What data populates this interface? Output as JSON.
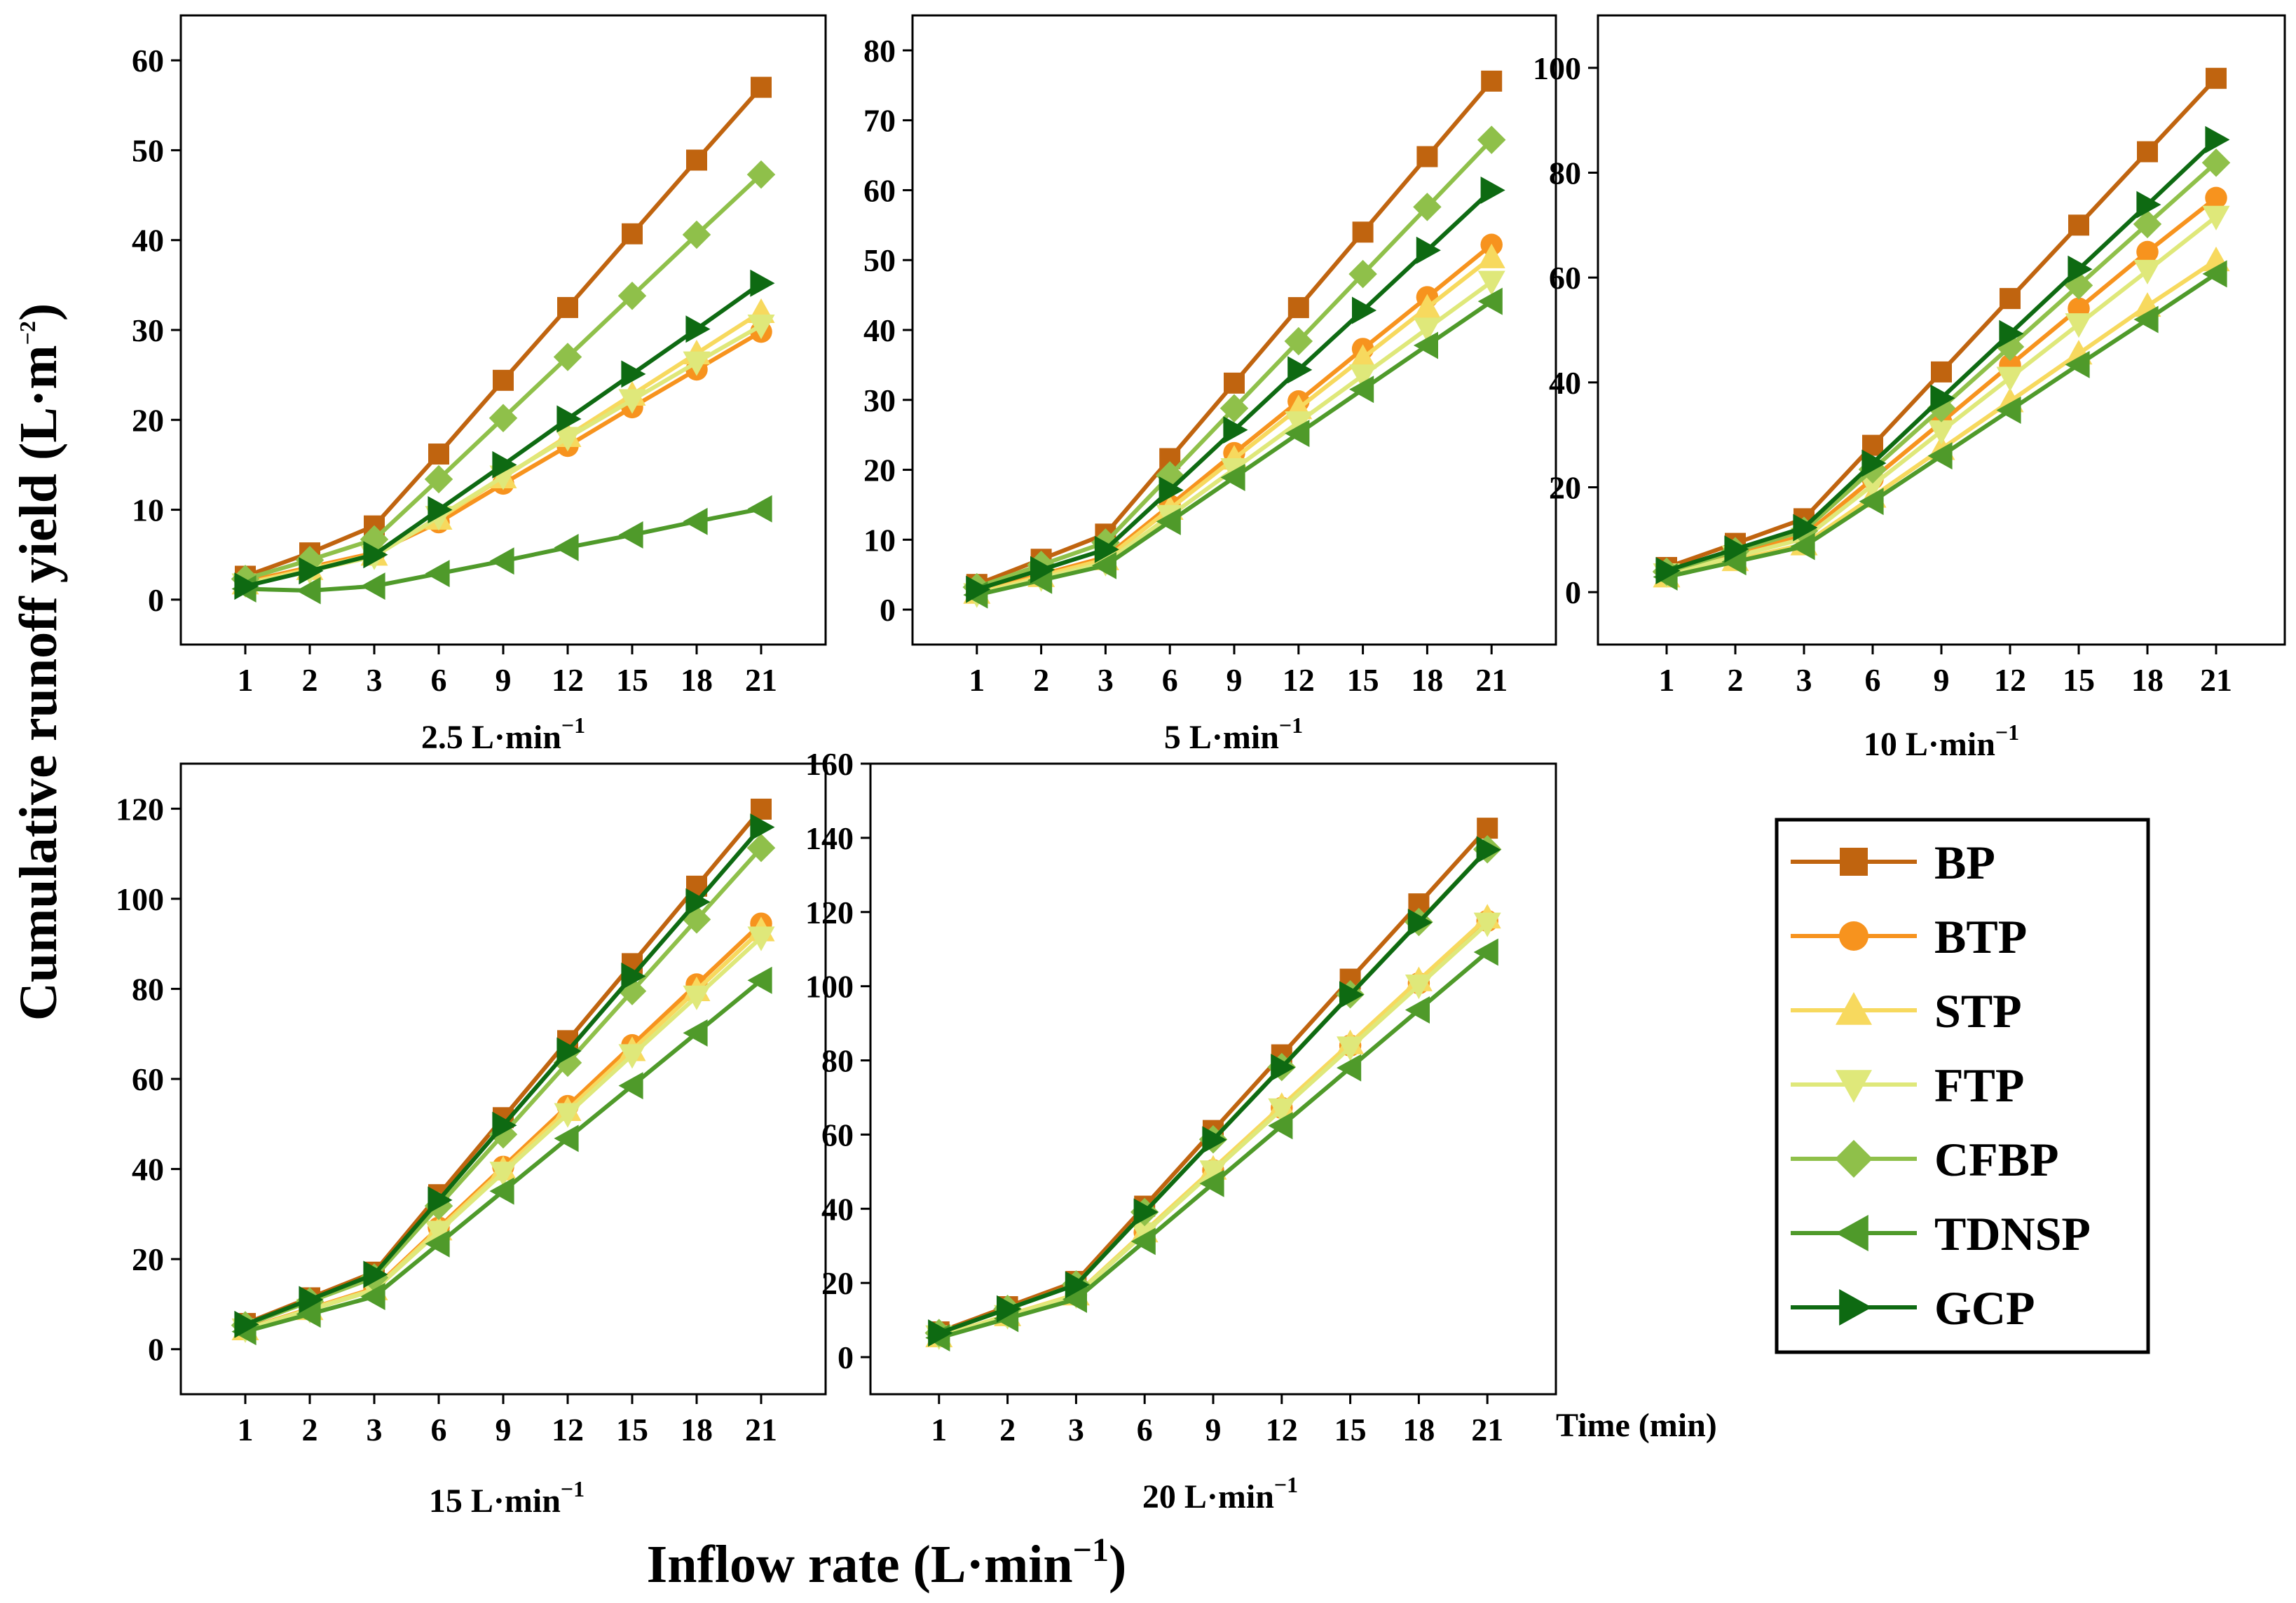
{
  "figure": {
    "ylabel": "Cumulative runoff  yield (L·m",
    "ylabel_sup": "−2",
    "ylabel_close": ")",
    "xlabel": "Inflow rate (L·min",
    "xlabel_sup": "−1",
    "xlabel_close": ")",
    "time_label": "Time (min)"
  },
  "series_styles": [
    {
      "name": "BP",
      "color": "#c0640f",
      "marker": "square"
    },
    {
      "name": "BTP",
      "color": "#f7931e",
      "marker": "circle"
    },
    {
      "name": "STP",
      "color": "#f7d95e",
      "marker": "triangle-up"
    },
    {
      "name": "FTP",
      "color": "#dfe87a",
      "marker": "triangle-down"
    },
    {
      "name": "CFBP",
      "color": "#8fc04a",
      "marker": "diamond"
    },
    {
      "name": "TDNSP",
      "color": "#4f9a2a",
      "marker": "triangle-left"
    },
    {
      "name": "GCP",
      "color": "#0e6a12",
      "marker": "triangle-right"
    }
  ],
  "chart_data": [
    {
      "type": "line",
      "title": "2.5 L·min",
      "title_sup": "−1",
      "categories": [
        "1",
        "2",
        "3",
        "6",
        "9",
        "12",
        "15",
        "18",
        "21"
      ],
      "ylim": [
        -5,
        65
      ],
      "yticks": [
        "0",
        "10",
        "20",
        "30",
        "40",
        "50",
        "60"
      ],
      "series": [
        {
          "name": "BP",
          "values": [
            2.6,
            5.2,
            8.2,
            16.2,
            24.4,
            32.5,
            40.7,
            48.9,
            57.0
          ]
        },
        {
          "name": "BTP",
          "values": [
            2.0,
            3.6,
            5.2,
            8.6,
            12.9,
            17.1,
            21.4,
            25.6,
            29.8
          ]
        },
        {
          "name": "STP",
          "values": [
            1.8,
            3.4,
            5.0,
            9.0,
            13.6,
            18.2,
            22.8,
            27.4,
            32.0
          ]
        },
        {
          "name": "FTP",
          "values": [
            1.7,
            3.2,
            4.8,
            9.2,
            13.7,
            18.0,
            22.2,
            26.4,
            30.5
          ]
        },
        {
          "name": "CFBP",
          "values": [
            2.3,
            4.4,
            6.7,
            13.4,
            20.2,
            27.0,
            33.8,
            40.6,
            47.3
          ]
        },
        {
          "name": "TDNSP",
          "values": [
            1.2,
            1.0,
            1.5,
            2.9,
            4.3,
            5.8,
            7.2,
            8.7,
            10.1
          ]
        },
        {
          "name": "GCP",
          "values": [
            1.5,
            3.2,
            5.0,
            10.0,
            15.0,
            20.1,
            25.1,
            30.1,
            35.2
          ]
        }
      ]
    },
    {
      "type": "line",
      "title": "5 L·min",
      "title_sup": "−1",
      "categories": [
        "1",
        "2",
        "3",
        "6",
        "9",
        "12",
        "15",
        "18",
        "21"
      ],
      "ylim": [
        -5,
        85
      ],
      "yticks": [
        "0",
        "10",
        "20",
        "30",
        "40",
        "50",
        "60",
        "70",
        "80"
      ],
      "series": [
        {
          "name": "BP",
          "values": [
            3.6,
            7.2,
            10.8,
            21.6,
            32.4,
            43.2,
            54.0,
            64.8,
            75.6
          ]
        },
        {
          "name": "BTP",
          "values": [
            2.5,
            5.0,
            7.5,
            14.9,
            22.4,
            29.8,
            37.3,
            44.7,
            52.2
          ]
        },
        {
          "name": "STP",
          "values": [
            2.4,
            4.8,
            7.2,
            14.4,
            21.6,
            28.8,
            36.0,
            43.2,
            50.4
          ]
        },
        {
          "name": "FTP",
          "values": [
            2.2,
            4.5,
            6.7,
            13.4,
            20.1,
            26.8,
            33.5,
            40.2,
            46.9
          ]
        },
        {
          "name": "CFBP",
          "values": [
            3.2,
            6.4,
            9.6,
            19.2,
            28.8,
            38.4,
            48.0,
            57.6,
            67.2
          ]
        },
        {
          "name": "TDNSP",
          "values": [
            2.1,
            4.2,
            6.3,
            12.6,
            18.9,
            25.2,
            31.5,
            37.8,
            44.1
          ]
        },
        {
          "name": "GCP",
          "values": [
            2.9,
            5.7,
            8.6,
            17.1,
            25.7,
            34.3,
            42.8,
            51.4,
            60.0
          ]
        }
      ]
    },
    {
      "type": "line",
      "title": "10 L·min",
      "title_sup": "−1",
      "categories": [
        "1",
        "2",
        "3",
        "6",
        "9",
        "12",
        "15",
        "18",
        "21"
      ],
      "ylim": [
        -10,
        110
      ],
      "yticks": [
        "0",
        "20",
        "40",
        "60",
        "80",
        "100"
      ],
      "series": [
        {
          "name": "BP",
          "values": [
            4.7,
            9.3,
            14.0,
            28.0,
            42.0,
            56.0,
            70.0,
            84.0,
            98.0
          ]
        },
        {
          "name": "BTP",
          "values": [
            3.6,
            7.2,
            10.8,
            21.6,
            32.4,
            43.3,
            54.1,
            64.9,
            75.2
          ]
        },
        {
          "name": "STP",
          "values": [
            3.0,
            6.1,
            9.1,
            18.2,
            27.3,
            36.4,
            45.5,
            54.6,
            63.3
          ]
        },
        {
          "name": "FTP",
          "values": [
            3.4,
            6.8,
            10.2,
            20.4,
            30.7,
            40.9,
            51.1,
            61.3,
            71.6
          ]
        },
        {
          "name": "CFBP",
          "values": [
            3.9,
            7.8,
            11.7,
            23.4,
            35.1,
            46.8,
            58.5,
            70.2,
            81.9
          ]
        },
        {
          "name": "TDNSP",
          "values": [
            2.9,
            5.8,
            8.7,
            17.3,
            26.0,
            34.7,
            43.4,
            52.0,
            60.7
          ]
        },
        {
          "name": "GCP",
          "values": [
            4.1,
            8.2,
            12.3,
            24.6,
            37.0,
            49.3,
            61.6,
            73.9,
            86.3
          ]
        }
      ]
    },
    {
      "type": "line",
      "title": "15 L·min",
      "title_sup": "−1",
      "categories": [
        "1",
        "2",
        "3",
        "6",
        "9",
        "12",
        "15",
        "18",
        "21"
      ],
      "ylim": [
        -10,
        130
      ],
      "yticks": [
        "0",
        "20",
        "40",
        "60",
        "80",
        "100",
        "120"
      ],
      "series": [
        {
          "name": "BP",
          "values": [
            5.7,
            11.4,
            17.1,
            34.3,
            51.4,
            68.5,
            85.6,
            102.8,
            119.9
          ]
        },
        {
          "name": "BTP",
          "values": [
            4.5,
            9.0,
            13.5,
            27.0,
            40.5,
            54.0,
            67.5,
            81.0,
            94.5
          ]
        },
        {
          "name": "STP",
          "values": [
            4.4,
            8.9,
            13.3,
            26.6,
            39.9,
            53.1,
            66.4,
            79.7,
            93.0
          ]
        },
        {
          "name": "FTP",
          "values": [
            4.4,
            8.7,
            13.1,
            26.1,
            39.2,
            52.2,
            65.3,
            78.3,
            91.4
          ]
        },
        {
          "name": "CFBP",
          "values": [
            5.3,
            10.6,
            15.9,
            31.8,
            47.7,
            63.6,
            79.5,
            95.4,
            111.3
          ]
        },
        {
          "name": "TDNSP",
          "values": [
            3.9,
            7.8,
            11.7,
            23.4,
            35.1,
            46.8,
            58.5,
            70.2,
            81.9
          ]
        },
        {
          "name": "GCP",
          "values": [
            5.5,
            11.0,
            16.6,
            33.1,
            49.7,
            66.2,
            82.8,
            99.3,
            115.9
          ]
        }
      ]
    },
    {
      "type": "line",
      "title": "20 L·min",
      "title_sup": "−1",
      "categories": [
        "1",
        "2",
        "3",
        "6",
        "9",
        "12",
        "15",
        "18",
        "21"
      ],
      "ylim": [
        -10,
        160
      ],
      "yticks": [
        "0",
        "20",
        "40",
        "60",
        "80",
        "100",
        "120",
        "140",
        "160"
      ],
      "series": [
        {
          "name": "BP",
          "values": [
            6.8,
            13.6,
            20.4,
            40.7,
            61.1,
            81.5,
            101.9,
            122.2,
            142.6
          ]
        },
        {
          "name": "BTP",
          "values": [
            5.6,
            11.2,
            16.8,
            33.6,
            50.4,
            67.2,
            84.0,
            100.8,
            117.6
          ]
        },
        {
          "name": "STP",
          "values": [
            5.6,
            11.3,
            16.9,
            33.9,
            50.8,
            67.7,
            84.6,
            101.6,
            118.5
          ]
        },
        {
          "name": "FTP",
          "values": [
            5.6,
            11.1,
            16.7,
            33.4,
            50.1,
            66.8,
            83.5,
            100.2,
            116.9
          ]
        },
        {
          "name": "CFBP",
          "values": [
            6.5,
            13.0,
            19.6,
            39.1,
            58.7,
            78.2,
            97.8,
            117.3,
            136.9
          ]
        },
        {
          "name": "TDNSP",
          "values": [
            5.2,
            10.4,
            15.6,
            31.2,
            46.8,
            62.4,
            78.0,
            93.6,
            109.2
          ]
        },
        {
          "name": "GCP",
          "values": [
            6.5,
            13.0,
            19.5,
            39.1,
            58.6,
            78.1,
            97.7,
            117.2,
            136.8
          ]
        }
      ]
    }
  ]
}
